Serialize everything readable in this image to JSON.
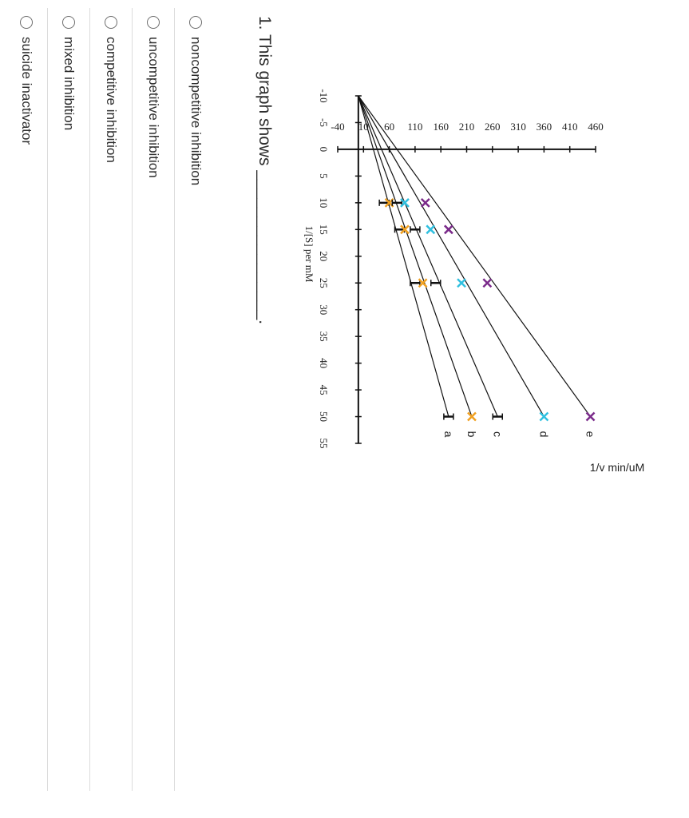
{
  "question": {
    "text": "1. This graph shows ________________."
  },
  "options": [
    {
      "label": "noncompetitive inhibition"
    },
    {
      "label": "uncompetitive inhibition"
    },
    {
      "label": "competitive inhibition"
    },
    {
      "label": "mixed inhibition"
    },
    {
      "label": "suicide inactivator"
    }
  ],
  "chart_data": {
    "type": "line",
    "title": "",
    "xlabel": "1/[S] per mM",
    "ylabel": "1/v min/uM",
    "xlim": [
      -10,
      55
    ],
    "ylim": [
      -40,
      460
    ],
    "xticks": [
      "-10",
      "-5",
      "0",
      "5",
      "10",
      "15",
      "20",
      "25",
      "30",
      "35",
      "40",
      "45",
      "50",
      "55"
    ],
    "yticks": [
      "-40",
      "10",
      "60",
      "110",
      "160",
      "210",
      "260",
      "310",
      "360",
      "410",
      "460"
    ],
    "grid": false,
    "series": [
      {
        "name": "a",
        "color": "#111111",
        "marker": "I",
        "x": [
          10,
          15,
          25,
          50
        ],
        "y": [
          50,
          80,
          110,
          175
        ]
      },
      {
        "name": "b",
        "color": "#f0a020",
        "marker": "x",
        "x": [
          10,
          15,
          25,
          50
        ],
        "y": [
          60,
          90,
          125,
          220
        ]
      },
      {
        "name": "c",
        "color": "#111111",
        "marker": "I",
        "x": [
          10,
          15,
          25,
          50
        ],
        "y": [
          75,
          110,
          150,
          270
        ]
      },
      {
        "name": "d",
        "color": "#30c0e0",
        "marker": "x",
        "x": [
          10,
          15,
          25,
          50
        ],
        "y": [
          90,
          140,
          200,
          360
        ]
      },
      {
        "name": "e",
        "color": "#7a2a8a",
        "marker": "x",
        "x": [
          10,
          15,
          25,
          50
        ],
        "y": [
          130,
          175,
          250,
          450
        ]
      }
    ],
    "intersection": {
      "x": -10,
      "y": 0
    }
  }
}
